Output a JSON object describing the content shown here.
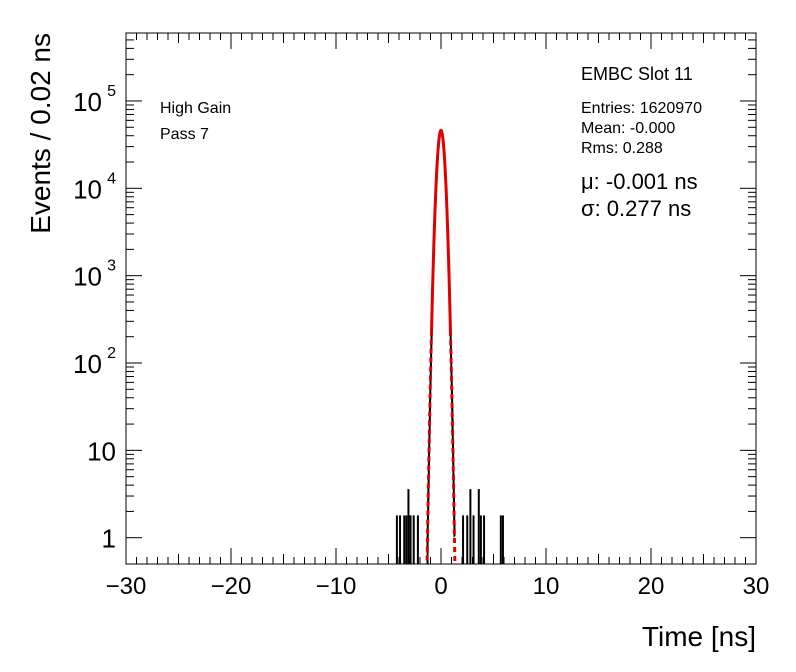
{
  "chart_data": {
    "type": "histogram",
    "title": "",
    "xlabel": "Time [ns]",
    "ylabel": "Events / 0.02 ns",
    "xlim": [
      -30,
      30
    ],
    "ylim": [
      0.5,
      600000
    ],
    "yscale": "log",
    "x_ticks": [
      -30,
      -20,
      -10,
      0,
      10,
      20,
      30
    ],
    "x_tick_labels": [
      "−30",
      "−20",
      "−10",
      "0",
      "10",
      "20",
      "30"
    ],
    "y_ticks": [
      {
        "value": 1,
        "base": "1",
        "exp": ""
      },
      {
        "value": 10,
        "base": "10",
        "exp": ""
      },
      {
        "value": 100,
        "base": "10",
        "exp": "2"
      },
      {
        "value": 1000,
        "base": "10",
        "exp": "3"
      },
      {
        "value": 10000,
        "base": "10",
        "exp": "4"
      },
      {
        "value": 100000,
        "base": "10",
        "exp": "5"
      }
    ],
    "grid": false,
    "histogram": {
      "color": "#000000",
      "bin_width": 0.02,
      "core_mu": 0.0,
      "core_sigma": 0.277,
      "core_peak": 45000,
      "tails": [
        {
          "x": -4.2,
          "y": 1
        },
        {
          "x": -3.9,
          "y": 1
        },
        {
          "x": -3.5,
          "y": 1
        },
        {
          "x": -3.3,
          "y": 1
        },
        {
          "x": -3.1,
          "y": 2
        },
        {
          "x": -2.9,
          "y": 1
        },
        {
          "x": -2.6,
          "y": 1
        },
        {
          "x": -2.2,
          "y": 1
        },
        {
          "x": 2.1,
          "y": 1
        },
        {
          "x": 2.5,
          "y": 1
        },
        {
          "x": 2.8,
          "y": 2
        },
        {
          "x": 3.1,
          "y": 1
        },
        {
          "x": 3.6,
          "y": 2
        },
        {
          "x": 3.8,
          "y": 1
        },
        {
          "x": 4.1,
          "y": 1
        },
        {
          "x": 5.7,
          "y": 1
        },
        {
          "x": 5.9,
          "y": 1
        }
      ]
    },
    "fit": {
      "color": "#e00000",
      "mu": -0.001,
      "sigma": 0.277,
      "peak": 46000,
      "fit_range": [
        -0.9,
        0.9
      ]
    }
  },
  "annotations": {
    "gain": "High Gain",
    "pass": "Pass 7",
    "module": "EMBC Slot 11",
    "entries": "Entries: 1620970",
    "mean": "Mean: -0.000",
    "rms": "Rms: 0.288",
    "mu_fit": "μ: -0.001 ns",
    "sigma_fit": "σ: 0.277 ns"
  }
}
